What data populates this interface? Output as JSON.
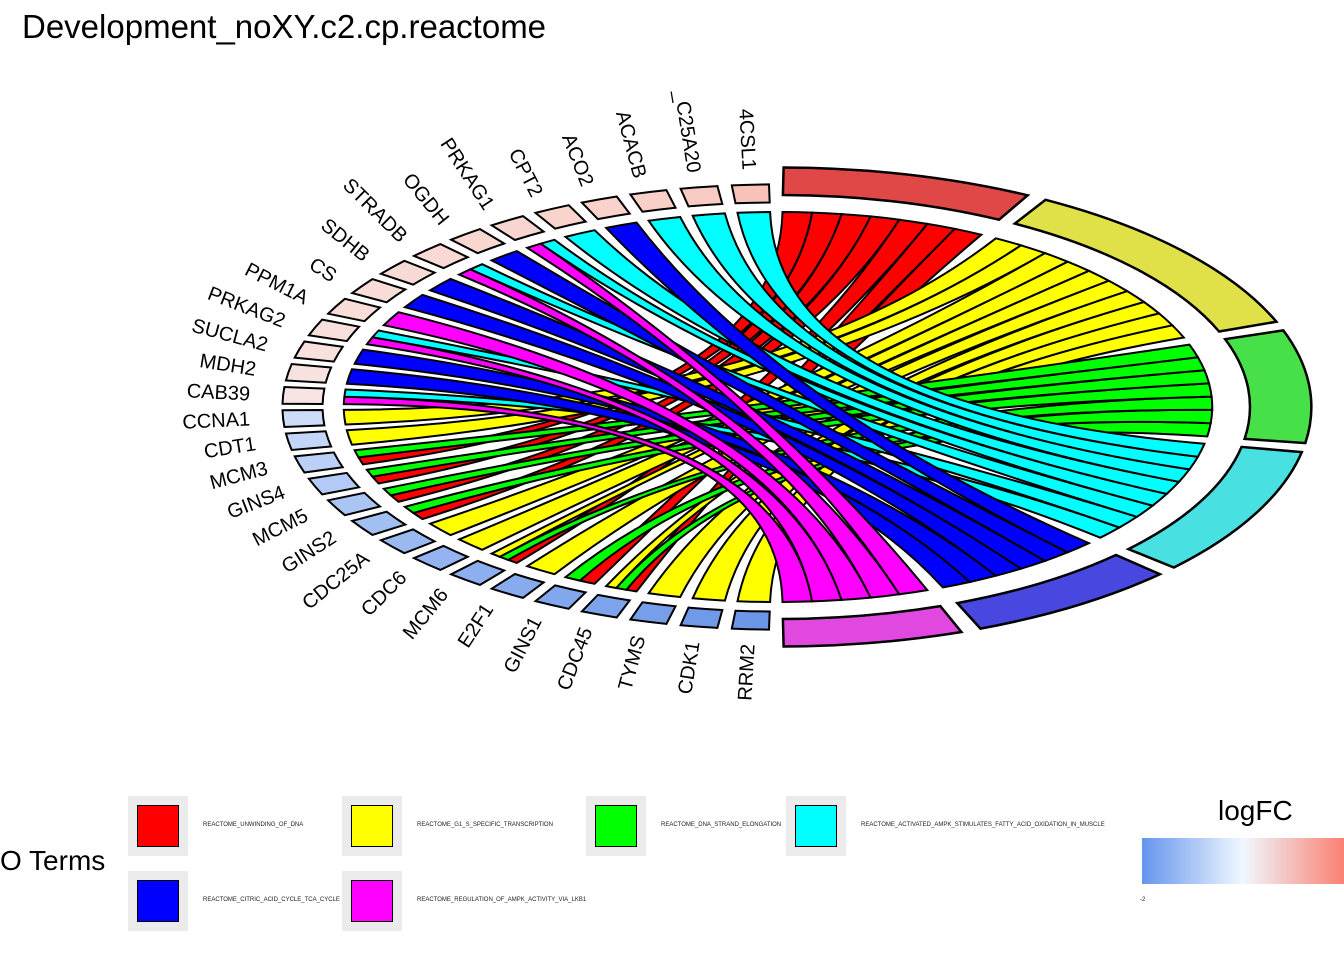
{
  "title": "Development_noXY.c2.cp.reactome",
  "legend": {
    "title": "O Terms",
    "items": [
      {
        "label": "REACTOME_UNWINDING_OF_DNA",
        "color": "#ff0000"
      },
      {
        "label": "REACTOME_G1_S_SPECIFIC_TRANSCRIPTION",
        "color": "#ffff00"
      },
      {
        "label": "REACTOME_DNA_STRAND_ELONGATION",
        "color": "#00ff00"
      },
      {
        "label": "REACTOME_ACTIVATED_AMPK_STIMULATES_FATTY_ACID_OXIDATION_IN_MUSCLE",
        "color": "#00ffff"
      },
      {
        "label": "REACTOME_CITRIC_ACID_CYCLE_TCA_CYCLE",
        "color": "#0000ff"
      },
      {
        "label": "REACTOME_REGULATION_OF_AMPK_ACTIVITY_VIA_LKB1",
        "color": "#ff00ff"
      }
    ]
  },
  "colorbar": {
    "title": "logFC",
    "tick": "-2",
    "low_color": "#6495ed",
    "mid_color": "#f0f8ff",
    "high_color": "#fa8072"
  },
  "genes": [
    {
      "name": "RRM2",
      "color": "#6c96e8"
    },
    {
      "name": "CDK1",
      "color": "#7099ea"
    },
    {
      "name": "TYMS",
      "color": "#779fe9"
    },
    {
      "name": "CDC45",
      "color": "#7ca3eb"
    },
    {
      "name": "GINS1",
      "color": "#82a7ec"
    },
    {
      "name": "E2F1",
      "color": "#87abee"
    },
    {
      "name": "MCM6",
      "color": "#8cafef"
    },
    {
      "name": "CDC6",
      "color": "#93b4f0"
    },
    {
      "name": "CDC25A",
      "color": "#9ab9f1"
    },
    {
      "name": "GINS2",
      "color": "#a2bff2"
    },
    {
      "name": "MCM5",
      "color": "#aac4f3"
    },
    {
      "name": "GINS4",
      "color": "#b2caf5"
    },
    {
      "name": "MCM3",
      "color": "#bbd0f6"
    },
    {
      "name": "CDT1",
      "color": "#c4d6f7"
    },
    {
      "name": "CCNA1",
      "color": "#cddcf8"
    },
    {
      "name": "CAB39",
      "color": "#f8e4e4"
    },
    {
      "name": "MDH2",
      "color": "#f8e2e0"
    },
    {
      "name": "SUCLA2",
      "color": "#f8e0dd"
    },
    {
      "name": "PRKAG2",
      "color": "#f8dfdb"
    },
    {
      "name": "PPM1A",
      "color": "#f8ddd9"
    },
    {
      "name": "CS",
      "color": "#f8dcd7"
    },
    {
      "name": "SDHB",
      "color": "#f8dad5"
    },
    {
      "name": "STRADB",
      "color": "#f8d9d3"
    },
    {
      "name": "OGDH",
      "color": "#f8d7d1"
    },
    {
      "name": "PRKAG1",
      "color": "#f8d6cf"
    },
    {
      "name": "CPT2",
      "color": "#f8d4cd"
    },
    {
      "name": "ACO2",
      "color": "#f8d2cb"
    },
    {
      "name": "ACACB",
      "color": "#f8d0c8"
    },
    {
      "name": "_C25A20",
      "color": "#f8cbc2"
    },
    {
      "name": "4CSL1",
      "color": "#f7c2b8"
    }
  ],
  "terms": [
    {
      "name": "REACTOME_UNWINDING_OF_DNA",
      "ribbon_color": "#ff0000",
      "arc_color": "#e04848"
    },
    {
      "name": "REACTOME_G1_S_SPECIFIC_TRANSCRIPTION",
      "ribbon_color": "#ffff00",
      "arc_color": "#e0e048"
    },
    {
      "name": "REACTOME_DNA_STRAND_ELONGATION",
      "ribbon_color": "#00ff00",
      "arc_color": "#48e048"
    },
    {
      "name": "REACTOME_ACTIVATED_AMPK_STIMULATES_FATTY_ACID_OXIDATION_IN_MUSCLE",
      "ribbon_color": "#00ffff",
      "arc_color": "#48e0e0"
    },
    {
      "name": "REACTOME_CITRIC_ACID_CYCLE_TCA_CYCLE",
      "ribbon_color": "#0000ff",
      "arc_color": "#4848e0"
    },
    {
      "name": "REACTOME_REGULATION_OF_AMPK_ACTIVITY_VIA_LKB1",
      "ribbon_color": "#ff00ff",
      "arc_color": "#e048e0"
    }
  ],
  "links": [
    [
      "RRM2",
      "REACTOME_G1_S_SPECIFIC_TRANSCRIPTION"
    ],
    [
      "CDK1",
      "REACTOME_G1_S_SPECIFIC_TRANSCRIPTION"
    ],
    [
      "TYMS",
      "REACTOME_G1_S_SPECIFIC_TRANSCRIPTION"
    ],
    [
      "CDC45",
      "REACTOME_UNWINDING_OF_DNA"
    ],
    [
      "CDC45",
      "REACTOME_DNA_STRAND_ELONGATION"
    ],
    [
      "CDC45",
      "REACTOME_G1_S_SPECIFIC_TRANSCRIPTION"
    ],
    [
      "GINS1",
      "REACTOME_UNWINDING_OF_DNA"
    ],
    [
      "GINS1",
      "REACTOME_DNA_STRAND_ELONGATION"
    ],
    [
      "E2F1",
      "REACTOME_G1_S_SPECIFIC_TRANSCRIPTION"
    ],
    [
      "MCM6",
      "REACTOME_UNWINDING_OF_DNA"
    ],
    [
      "MCM6",
      "REACTOME_DNA_STRAND_ELONGATION"
    ],
    [
      "MCM6",
      "REACTOME_G1_S_SPECIFIC_TRANSCRIPTION"
    ],
    [
      "CDC6",
      "REACTOME_G1_S_SPECIFIC_TRANSCRIPTION"
    ],
    [
      "CDC25A",
      "REACTOME_G1_S_SPECIFIC_TRANSCRIPTION"
    ],
    [
      "GINS2",
      "REACTOME_UNWINDING_OF_DNA"
    ],
    [
      "GINS2",
      "REACTOME_DNA_STRAND_ELONGATION"
    ],
    [
      "MCM5",
      "REACTOME_UNWINDING_OF_DNA"
    ],
    [
      "MCM5",
      "REACTOME_DNA_STRAND_ELONGATION"
    ],
    [
      "GINS4",
      "REACTOME_UNWINDING_OF_DNA"
    ],
    [
      "GINS4",
      "REACTOME_DNA_STRAND_ELONGATION"
    ],
    [
      "MCM3",
      "REACTOME_UNWINDING_OF_DNA"
    ],
    [
      "MCM3",
      "REACTOME_DNA_STRAND_ELONGATION"
    ],
    [
      "CDT1",
      "REACTOME_G1_S_SPECIFIC_TRANSCRIPTION"
    ],
    [
      "CCNA1",
      "REACTOME_G1_S_SPECIFIC_TRANSCRIPTION"
    ],
    [
      "CAB39",
      "REACTOME_REGULATION_OF_AMPK_ACTIVITY_VIA_LKB1"
    ],
    [
      "CAB39",
      "REACTOME_ACTIVATED_AMPK_STIMULATES_FATTY_ACID_OXIDATION_IN_MUSCLE"
    ],
    [
      "MDH2",
      "REACTOME_CITRIC_ACID_CYCLE_TCA_CYCLE"
    ],
    [
      "SUCLA2",
      "REACTOME_CITRIC_ACID_CYCLE_TCA_CYCLE"
    ],
    [
      "PRKAG2",
      "REACTOME_REGULATION_OF_AMPK_ACTIVITY_VIA_LKB1"
    ],
    [
      "PRKAG2",
      "REACTOME_ACTIVATED_AMPK_STIMULATES_FATTY_ACID_OXIDATION_IN_MUSCLE"
    ],
    [
      "PPM1A",
      "REACTOME_REGULATION_OF_AMPK_ACTIVITY_VIA_LKB1"
    ],
    [
      "CS",
      "REACTOME_CITRIC_ACID_CYCLE_TCA_CYCLE"
    ],
    [
      "SDHB",
      "REACTOME_CITRIC_ACID_CYCLE_TCA_CYCLE"
    ],
    [
      "STRADB",
      "REACTOME_REGULATION_OF_AMPK_ACTIVITY_VIA_LKB1"
    ],
    [
      "STRADB",
      "REACTOME_ACTIVATED_AMPK_STIMULATES_FATTY_ACID_OXIDATION_IN_MUSCLE"
    ],
    [
      "OGDH",
      "REACTOME_CITRIC_ACID_CYCLE_TCA_CYCLE"
    ],
    [
      "PRKAG1",
      "REACTOME_REGULATION_OF_AMPK_ACTIVITY_VIA_LKB1"
    ],
    [
      "PRKAG1",
      "REACTOME_ACTIVATED_AMPK_STIMULATES_FATTY_ACID_OXIDATION_IN_MUSCLE"
    ],
    [
      "CPT2",
      "REACTOME_ACTIVATED_AMPK_STIMULATES_FATTY_ACID_OXIDATION_IN_MUSCLE"
    ],
    [
      "ACO2",
      "REACTOME_CITRIC_ACID_CYCLE_TCA_CYCLE"
    ],
    [
      "ACACB",
      "REACTOME_ACTIVATED_AMPK_STIMULATES_FATTY_ACID_OXIDATION_IN_MUSCLE"
    ],
    [
      "_C25A20",
      "REACTOME_ACTIVATED_AMPK_STIMULATES_FATTY_ACID_OXIDATION_IN_MUSCLE"
    ],
    [
      "4CSL1",
      "REACTOME_ACTIVATED_AMPK_STIMULATES_FATTY_ACID_OXIDATION_IN_MUSCLE"
    ]
  ]
}
